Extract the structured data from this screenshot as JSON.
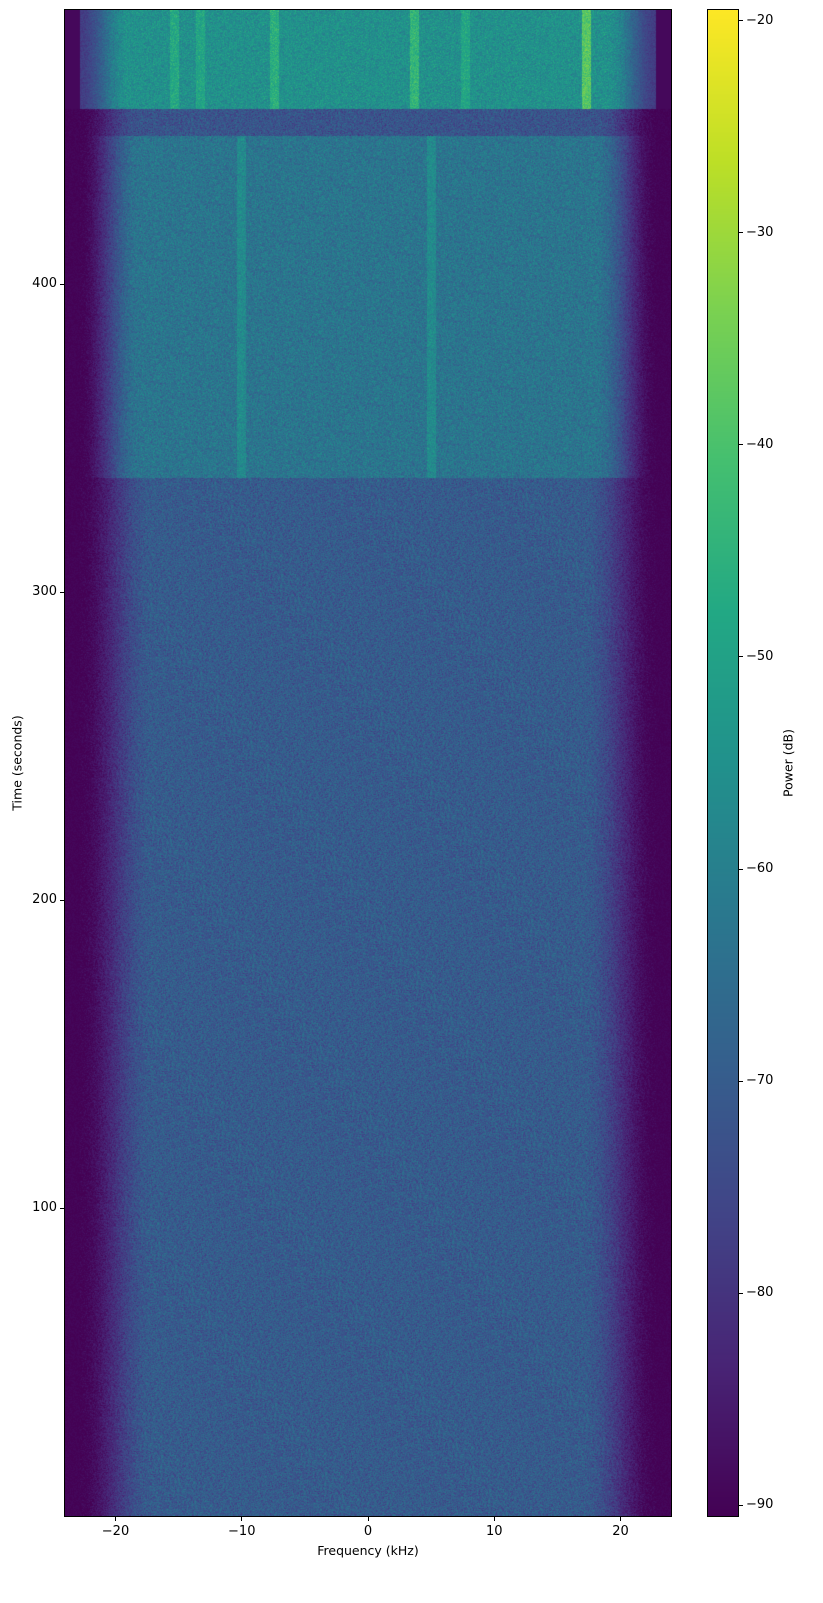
{
  "chart_data": {
    "type": "heatmap",
    "subtype": "spectrogram",
    "title": "",
    "xlabel": "Frequency (kHz)",
    "ylabel": "Time (seconds)",
    "xlim": [
      -24,
      24
    ],
    "ylim": [
      0,
      489
    ],
    "xticks": [
      -20,
      -10,
      0,
      10,
      20
    ],
    "xtick_labels": [
      "−20",
      "−10",
      "0",
      "10",
      "20"
    ],
    "yticks": [
      100,
      200,
      300,
      400
    ],
    "ytick_labels": [
      "100",
      "200",
      "300",
      "400"
    ],
    "colorbar": {
      "label": "Power (dB)",
      "colormap": "viridis",
      "range": [
        -90.5,
        -19.5
      ],
      "ticks": [
        -20,
        -30,
        -40,
        -50,
        -60,
        -70,
        -80,
        -90
      ],
      "tick_labels": [
        "−20",
        "−30",
        "−40",
        "−50",
        "−60",
        "−70",
        "−80",
        "−90"
      ]
    },
    "segments": [
      {
        "time_range": [
          0,
          337
        ],
        "mean_power_db": -70,
        "passband_khz": [
          -17,
          17
        ],
        "edge_floor_db": -90
      },
      {
        "time_range": [
          337,
          448
        ],
        "mean_power_db": -63,
        "passband_khz": [
          -18,
          18
        ],
        "edge_floor_db": -90
      },
      {
        "time_range": [
          448,
          457
        ],
        "mean_power_db": -72,
        "passband_khz": [
          -18,
          18
        ],
        "edge_floor_db": -90
      },
      {
        "time_range": [
          457,
          489
        ],
        "mean_power_db": -55,
        "passband_khz": [
          -19,
          19
        ],
        "edge_floor_db": -78
      }
    ],
    "tones": [
      {
        "freq_khz": -15.3,
        "time_range": [
          457,
          489
        ],
        "power_db": -48
      },
      {
        "freq_khz": -13.3,
        "time_range": [
          457,
          489
        ],
        "power_db": -49
      },
      {
        "freq_khz": -7.4,
        "time_range": [
          457,
          489
        ],
        "power_db": -46
      },
      {
        "freq_khz": 3.7,
        "time_range": [
          457,
          489
        ],
        "power_db": -44
      },
      {
        "freq_khz": 7.7,
        "time_range": [
          457,
          489
        ],
        "power_db": -49
      },
      {
        "freq_khz": 17.3,
        "time_range": [
          457,
          489
        ],
        "power_db": -38
      },
      {
        "freq_khz": -10.0,
        "time_range": [
          337,
          448
        ],
        "power_db": -57
      },
      {
        "freq_khz": 5.0,
        "time_range": [
          337,
          448
        ],
        "power_db": -57
      }
    ]
  }
}
